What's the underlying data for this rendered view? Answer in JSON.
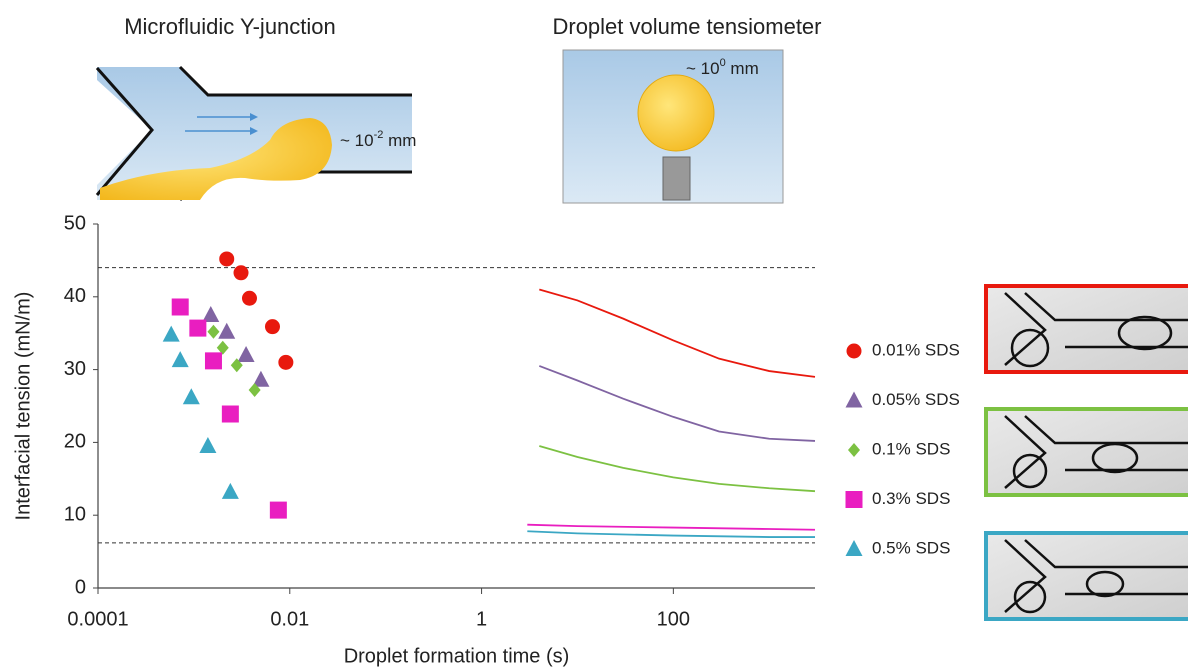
{
  "diagrams": {
    "y_junction": {
      "title": "Microfluidic Y-junction",
      "scale_prefix": "~ 10",
      "scale_exponent": "-2",
      "scale_unit": " mm"
    },
    "tensiometer": {
      "title": "Droplet volume tensiometer",
      "scale_prefix": "~ 10",
      "scale_exponent": "0",
      "scale_unit": " mm"
    }
  },
  "chart_data": {
    "type": "scatter",
    "xlabel": "Droplet formation time (s)",
    "ylabel": "Interfacial tension (mN/m)",
    "xscale": "log",
    "xlim": [
      0.0001,
      3000
    ],
    "xticks": [
      0.0001,
      0.01,
      1,
      100
    ],
    "ylim": [
      0,
      50
    ],
    "yticks": [
      0,
      10,
      20,
      30,
      40,
      50
    ],
    "grid": false,
    "reference_lines": [
      44,
      6.2
    ],
    "series": [
      {
        "name": "0.01% SDS",
        "color": "#e8190e",
        "marker": "circle",
        "x": [
          0.0022,
          0.0031,
          0.0038,
          0.0066,
          0.0091
        ],
        "values": [
          45.2,
          43.3,
          39.8,
          35.9,
          31.0
        ],
        "line_x": [
          4,
          10,
          30,
          100,
          300,
          1000,
          3000
        ],
        "line_values": [
          41,
          39.5,
          37,
          34,
          31.5,
          29.8,
          29
        ]
      },
      {
        "name": "0.05% SDS",
        "color": "#8064a2",
        "marker": "triangle",
        "x": [
          0.0015,
          0.0022,
          0.0035,
          0.005
        ],
        "values": [
          37.5,
          35.2,
          32.0,
          28.6
        ],
        "line_x": [
          4,
          10,
          30,
          100,
          300,
          1000,
          3000
        ],
        "line_values": [
          30.5,
          28.5,
          26,
          23.5,
          21.5,
          20.5,
          20.2
        ]
      },
      {
        "name": "0.1% SDS",
        "color": "#7cc142",
        "marker": "diamond",
        "x": [
          0.0016,
          0.002,
          0.0028,
          0.0043
        ],
        "values": [
          35.2,
          33.0,
          30.6,
          27.2
        ],
        "line_x": [
          4,
          10,
          30,
          100,
          300,
          1000,
          3000
        ],
        "line_values": [
          19.5,
          18,
          16.5,
          15.2,
          14.3,
          13.7,
          13.3
        ]
      },
      {
        "name": "0.3% SDS",
        "color": "#e91ec0",
        "marker": "square",
        "x": [
          0.00072,
          0.0011,
          0.0016,
          0.0024,
          0.0076
        ],
        "values": [
          38.6,
          35.7,
          31.2,
          23.9,
          10.7
        ],
        "line_x": [
          3,
          10,
          100,
          1000,
          3000
        ],
        "line_values": [
          8.7,
          8.5,
          8.3,
          8.1,
          8.0
        ]
      },
      {
        "name": "0.5% SDS",
        "color": "#3ba7c4",
        "marker": "triangle",
        "x": [
          0.00058,
          0.00072,
          0.00094,
          0.0014,
          0.0024
        ],
        "values": [
          34.8,
          31.3,
          26.2,
          19.5,
          13.2
        ],
        "line_x": [
          3,
          10,
          100,
          1000,
          3000
        ],
        "line_values": [
          7.8,
          7.5,
          7.2,
          7.0,
          7.0
        ]
      }
    ]
  }
}
